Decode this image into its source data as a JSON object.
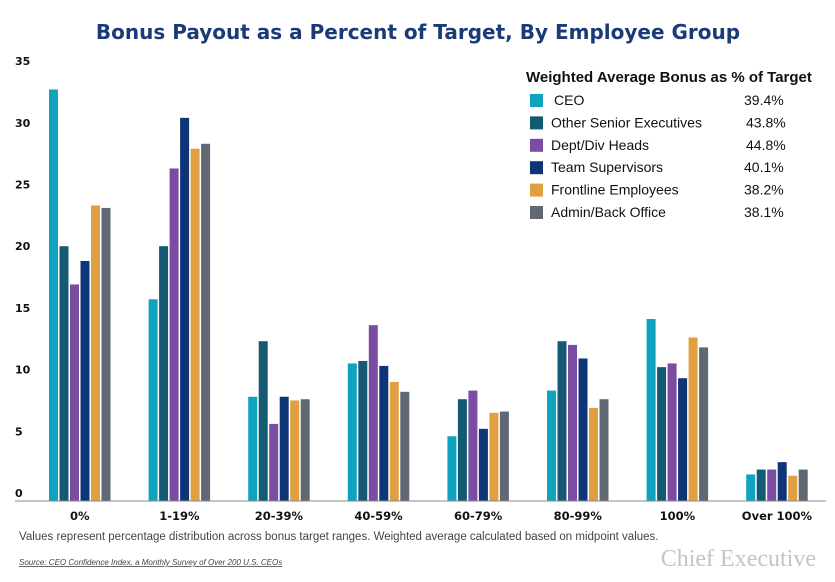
{
  "chart_data": {
    "type": "bar",
    "title": "Bonus Payout as a Percent of Target, By Employee Group",
    "xlabel": "",
    "ylabel": "",
    "ylim": [
      0,
      35
    ],
    "yticks": [
      "0",
      "5",
      "10",
      "15",
      "20",
      "25",
      "30",
      "35"
    ],
    "grid": false,
    "legend_position": "top-right",
    "categories": [
      "0%",
      "1-19%",
      "20-39%",
      "40-59%",
      "60-79%",
      "80-99%",
      "100%",
      "Over 100%"
    ],
    "series": [
      {
        "name": "CEO",
        "color": "#10a3bf",
        "values": [
          32.7,
          15.7,
          7.8,
          10.5,
          4.6,
          8.3,
          14.1,
          1.5
        ]
      },
      {
        "name": "Other Senior Executives",
        "color": "#145a72",
        "values": [
          20.0,
          20.0,
          12.3,
          10.7,
          7.6,
          12.3,
          10.2,
          1.9
        ]
      },
      {
        "name": "Dept/Div Heads",
        "color": "#7a4ca2",
        "values": [
          16.9,
          26.3,
          5.6,
          13.6,
          8.3,
          12.0,
          10.5,
          1.9
        ]
      },
      {
        "name": "Team Supervisors",
        "color": "#0d3577",
        "values": [
          18.8,
          30.4,
          7.8,
          10.3,
          5.2,
          10.9,
          9.3,
          2.5
        ]
      },
      {
        "name": "Frontline Employees",
        "color": "#e0a042",
        "values": [
          23.3,
          27.9,
          7.5,
          9.0,
          6.5,
          6.9,
          12.6,
          1.4
        ]
      },
      {
        "name": "Admin/Back Office",
        "color": "#5f6873",
        "values": [
          23.1,
          28.3,
          7.6,
          8.2,
          6.6,
          7.6,
          11.8,
          1.9
        ]
      }
    ],
    "legend": {
      "title": "Weighted Average Bonus as % of Target",
      "entries": [
        {
          "label": "CEO",
          "value": "39.4%"
        },
        {
          "label": "Other Senior Executives",
          "value": "43.8%"
        },
        {
          "label": "Dept/Div Heads",
          "value": "44.8%"
        },
        {
          "label": "Team Supervisors",
          "value": "40.1%"
        },
        {
          "label": "Frontline Employees",
          "value": "38.2%"
        },
        {
          "label": "Admin/Back Office",
          "value": "38.1%"
        }
      ]
    },
    "note": "Values represent percentage distribution across bonus target ranges. Weighted average calculated based on midpoint values.",
    "source": "Source: CEO Confidence Index, a Monthly Survey of Over 200 U.S. CEOs",
    "logo": "Chief Executive"
  }
}
